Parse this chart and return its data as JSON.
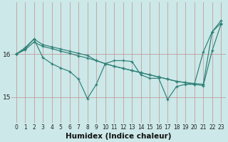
{
  "xlabel": "Humidex (Indice chaleur)",
  "bg_color": "#cce8e8",
  "line_color": "#2d7f75",
  "x": [
    0,
    1,
    2,
    3,
    4,
    5,
    6,
    7,
    8,
    9,
    10,
    11,
    12,
    13,
    14,
    15,
    16,
    17,
    18,
    19,
    20,
    21,
    22,
    23
  ],
  "upper_line": [
    16.0,
    16.15,
    16.35,
    16.22,
    16.17,
    16.12,
    16.07,
    16.02,
    15.97,
    15.85,
    15.78,
    15.72,
    15.67,
    15.62,
    15.57,
    15.52,
    15.47,
    15.42,
    15.37,
    15.34,
    15.32,
    15.3,
    16.52,
    16.78
  ],
  "middle_line": [
    16.0,
    16.1,
    16.28,
    16.18,
    16.13,
    16.07,
    16.02,
    15.96,
    15.91,
    15.85,
    15.78,
    15.72,
    15.67,
    15.62,
    15.57,
    15.52,
    15.47,
    15.42,
    15.37,
    15.34,
    15.3,
    15.27,
    16.08,
    16.7
  ],
  "zigzag": [
    16.0,
    16.12,
    16.35,
    15.92,
    15.78,
    15.68,
    15.6,
    15.42,
    14.97,
    15.3,
    15.78,
    15.85,
    15.85,
    15.83,
    15.52,
    15.44,
    15.44,
    14.95,
    15.25,
    15.3,
    15.3,
    16.05,
    16.52,
    16.72
  ],
  "yticks": [
    15,
    16
  ],
  "ylim": [
    14.4,
    17.2
  ],
  "xlim": [
    -0.5,
    23.5
  ],
  "xlabel_fontsize": 7.5,
  "tick_fontsize": 6.5
}
